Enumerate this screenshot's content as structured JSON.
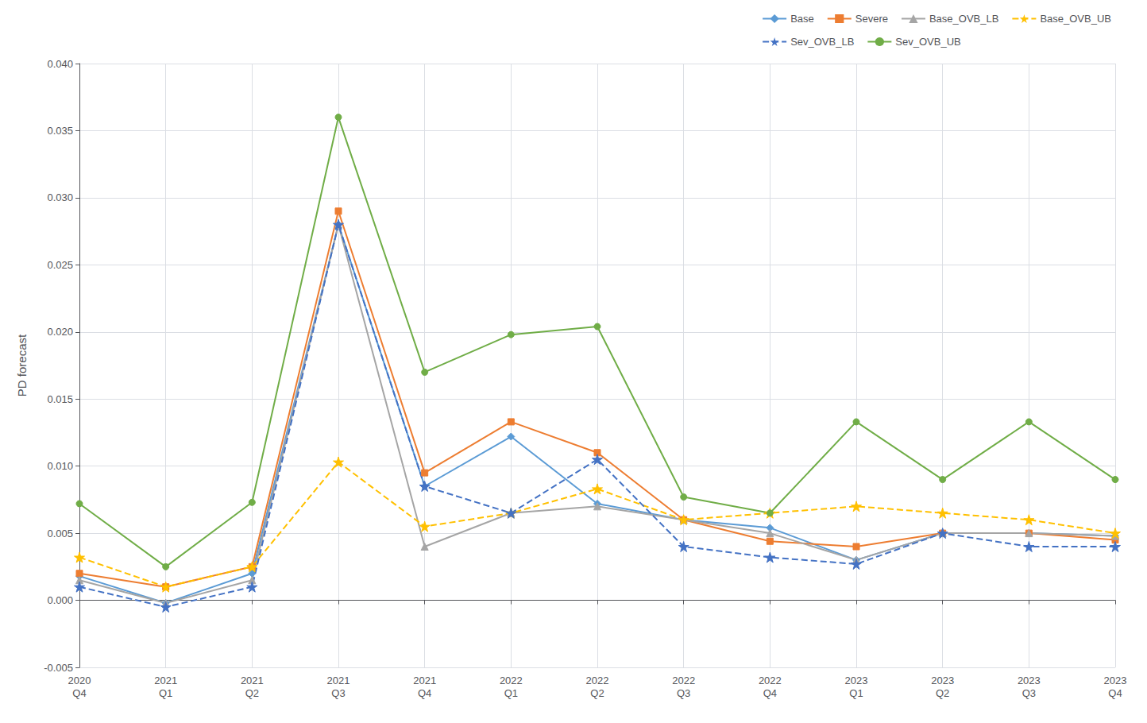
{
  "chart_data": {
    "type": "line",
    "ylabel": "PD forecast",
    "categories": [
      "2020\nQ4",
      "2021\nQ1",
      "2021\nQ2",
      "2021\nQ3",
      "2021\nQ4",
      "2022\nQ1",
      "2022\nQ2",
      "2022\nQ3",
      "2022\nQ4",
      "2023\nQ1",
      "2023\nQ2",
      "2023\nQ3",
      "2023\nQ4"
    ],
    "series": [
      {
        "name": "Base",
        "color": "#5B9BD5",
        "marker": "diamond",
        "line_style": "solid",
        "values": [
          0.0018,
          -0.0002,
          0.002,
          0.028,
          0.0085,
          0.0122,
          0.0072,
          0.006,
          0.0054,
          0.003,
          0.005,
          0.005,
          0.0048
        ]
      },
      {
        "name": "Severe",
        "color": "#ED7D31",
        "marker": "square",
        "line_style": "solid",
        "values": [
          0.002,
          0.001,
          0.0025,
          0.029,
          0.0095,
          0.0133,
          0.011,
          0.006,
          0.0044,
          0.004,
          0.005,
          0.005,
          0.0045
        ]
      },
      {
        "name": "Base_OVB_LB",
        "color": "#A5A5A5",
        "marker": "triangle",
        "line_style": "solid",
        "values": [
          0.0015,
          -0.0002,
          0.0015,
          0.028,
          0.004,
          0.0065,
          0.007,
          0.006,
          0.005,
          0.003,
          0.005,
          0.005,
          0.0048
        ]
      },
      {
        "name": "Base_OVB_UB",
        "color": "#FFC000",
        "marker": "star",
        "line_style": "dashed",
        "values": [
          0.0032,
          0.001,
          0.0025,
          0.0103,
          0.0055,
          0.0065,
          0.0083,
          0.006,
          0.0065,
          0.007,
          0.0065,
          0.006,
          0.005
        ]
      },
      {
        "name": "Sev_OVB_LB",
        "color": "#4472C4",
        "marker": "star",
        "line_style": "dashed",
        "values": [
          0.001,
          -0.0005,
          0.001,
          0.028,
          0.0085,
          0.0065,
          0.0105,
          0.004,
          0.0032,
          0.0027,
          0.005,
          0.004,
          0.004
        ]
      },
      {
        "name": "Sev_OVB_UB",
        "color": "#70AD47",
        "marker": "circle",
        "line_style": "solid",
        "values": [
          0.0072,
          0.0025,
          0.0073,
          0.036,
          0.017,
          0.0198,
          0.0204,
          0.0077,
          0.0065,
          0.0133,
          0.009,
          0.0133,
          0.009
        ]
      }
    ],
    "ylim": [
      -0.005,
      0.04
    ],
    "yticks": [
      -0.005,
      {
        "value": 0.0,
        "label": "0.000"
      },
      0.005,
      {
        "value": 0.01,
        "label": "0.010"
      },
      0.015,
      {
        "value": 0.02,
        "label": "0.020"
      },
      0.025,
      {
        "value": 0.03,
        "label": "0.030"
      },
      0.035,
      {
        "value": 0.04,
        "label": "0.040"
      }
    ],
    "grid": true,
    "legend": "upper right"
  }
}
